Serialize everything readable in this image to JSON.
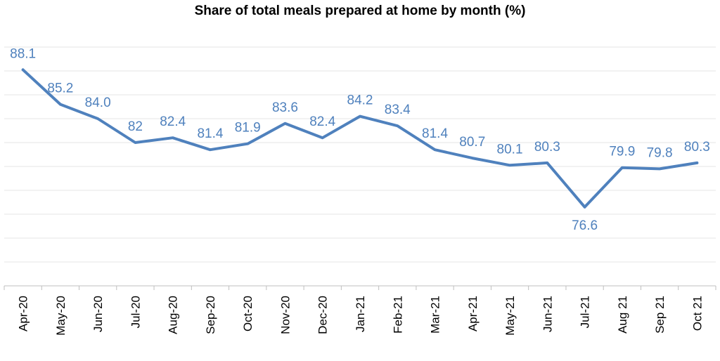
{
  "chart_data": {
    "type": "line",
    "title": "Share of total meals prepared at home by month (%)",
    "xlabel": "",
    "ylabel": "",
    "categories": [
      "Apr-20",
      "May-20",
      "Jun-20",
      "Jul-20",
      "Aug-20",
      "Sep-20",
      "Oct-20",
      "Nov-20",
      "Dec-20",
      "Jan-21",
      "Feb-21",
      "Mar-21",
      "Apr-21",
      "May-21",
      "Jun-21",
      "Jul-21",
      "Aug 21",
      "Sep 21",
      "Oct 21"
    ],
    "series": [
      {
        "values": [
          88.1,
          85.2,
          84.0,
          82,
          82.4,
          81.4,
          81.9,
          83.6,
          82.4,
          84.2,
          83.4,
          81.4,
          80.7,
          80.1,
          80.3,
          76.6,
          79.9,
          79.8,
          80.3
        ],
        "labels": [
          "88.1",
          "85.2",
          "84.0",
          "82",
          "82.4",
          "81.4",
          "81.9",
          "83.6",
          "82.4",
          "84.2",
          "83.4",
          "81.4",
          "80.7",
          "80.1",
          "80.3",
          "76.6",
          "79.9",
          "79.8",
          "80.3"
        ]
      }
    ],
    "ylim": [
      70,
      90
    ],
    "y_axis_visible": false,
    "grid": "horizontal",
    "legend": "none",
    "line_color": "#4f81bd",
    "label_color": "#4f81bd",
    "grid_color": "#e6e6e6",
    "axis_color": "#bfbfbf"
  }
}
